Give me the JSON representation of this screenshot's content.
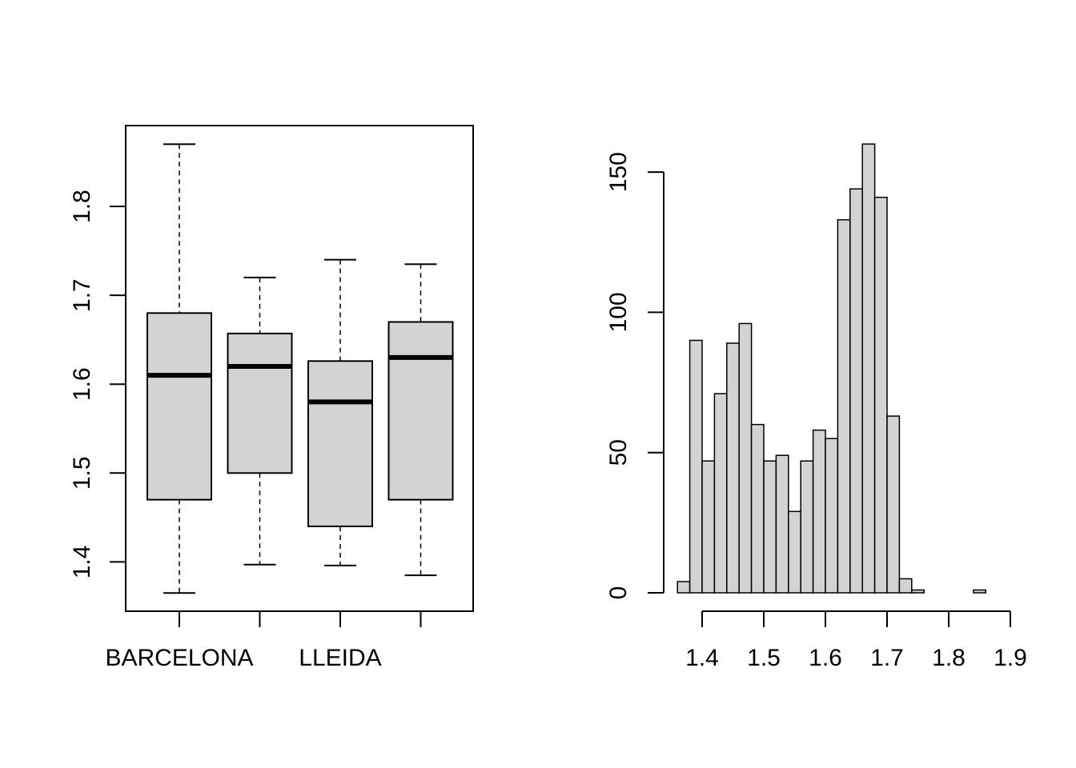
{
  "chart_data": [
    {
      "type": "boxplot",
      "title": "",
      "xlabel": "",
      "ylabel": "",
      "ylim": [
        1.345,
        1.89
      ],
      "y_ticks": [
        1.4,
        1.5,
        1.6,
        1.7,
        1.8
      ],
      "y_tick_labels": [
        "1.4",
        "1.5",
        "1.6",
        "1.7",
        "1.8"
      ],
      "categories": [
        "BARCELONA",
        "",
        "LLEIDA",
        ""
      ],
      "boxes": [
        {
          "whisker_low": 1.365,
          "q1": 1.47,
          "median": 1.61,
          "q3": 1.68,
          "whisker_high": 1.87
        },
        {
          "whisker_low": 1.397,
          "q1": 1.5,
          "median": 1.62,
          "q3": 1.657,
          "whisker_high": 1.72
        },
        {
          "whisker_low": 1.396,
          "q1": 1.44,
          "median": 1.58,
          "q3": 1.626,
          "whisker_high": 1.74
        },
        {
          "whisker_low": 1.385,
          "q1": 1.47,
          "median": 1.63,
          "q3": 1.67,
          "whisker_high": 1.735
        }
      ]
    },
    {
      "type": "histogram",
      "title": "",
      "xlabel": "",
      "ylabel": "",
      "bin_start": 1.36,
      "bin_width": 0.02,
      "counts": [
        4,
        90,
        47,
        71,
        89,
        96,
        60,
        47,
        49,
        29,
        47,
        58,
        55,
        133,
        144,
        160,
        141,
        63,
        5,
        1,
        0,
        0,
        0,
        0,
        1
      ],
      "x_ticks": [
        1.4,
        1.5,
        1.6,
        1.7,
        1.8,
        1.9
      ],
      "x_tick_labels": [
        "1.4",
        "1.5",
        "1.6",
        "1.7",
        "1.8",
        "1.9"
      ],
      "y_ticks": [
        0,
        50,
        100,
        150
      ],
      "y_tick_labels": [
        "0",
        "50",
        "100",
        "150"
      ],
      "bar_color": "#d3d3d3"
    }
  ]
}
